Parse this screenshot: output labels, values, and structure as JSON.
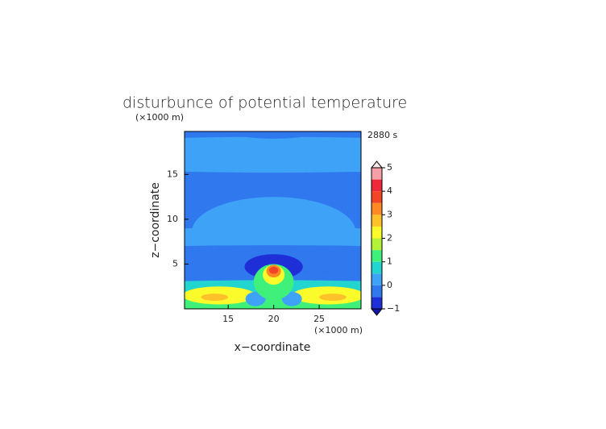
{
  "chart_data": {
    "type": "contour",
    "title": "disturbunce of potential temperature",
    "subtitle": "2880 s",
    "xlabel": "x−coordinate",
    "ylabel": "z−coordinate",
    "x_unit": "(×1000 m)",
    "y_unit": "(×1000 m)",
    "xlim": [
      10.2,
      29.6
    ],
    "ylim": [
      0,
      19.8
    ],
    "xticks": [
      15,
      20,
      25
    ],
    "yticks": [
      5,
      10,
      15
    ],
    "levels": [
      -1,
      -0.5,
      0,
      0.5,
      1,
      1.5,
      2,
      2.5,
      3,
      3.5,
      4,
      4.5,
      5
    ],
    "colors": [
      "#1f2fd8",
      "#2f78ee",
      "#3ea2f6",
      "#22d6cf",
      "#3ff07a",
      "#b4f23a",
      "#fbfb2c",
      "#ffc12a",
      "#ff8a24",
      "#f24526",
      "#ee2a3a",
      "#f4a0a6"
    ],
    "extend_colors": [
      "#1414b0",
      "#fde8e8"
    ],
    "cbar_lim": [
      -1,
      5
    ],
    "cbar_ticks": [
      {
        "value": -1,
        "label": "−1"
      },
      0,
      1,
      2,
      3,
      4,
      5
    ],
    "background_value": -0.25,
    "regions": [
      {
        "x": 20,
        "z": 17.2,
        "rx": 30,
        "rz": 2,
        "value": 0.25
      },
      {
        "x": 20,
        "z": 20.3,
        "rx": 6,
        "rz": 1.3,
        "value": -0.25
      },
      {
        "x": 20,
        "z": 8.6,
        "rx": 9,
        "rz": 3.9,
        "value": 0.25
      },
      {
        "x": 11,
        "z": 7.6,
        "rx": 3,
        "rz": 1.4,
        "value": 0.25
      },
      {
        "x": 29,
        "z": 7.6,
        "rx": 3,
        "rz": 1.4,
        "value": 0.25
      },
      {
        "x": 20,
        "z": 5.6,
        "rx": 30,
        "rz": 1.5,
        "value": -0.25
      },
      {
        "x": 20,
        "z": 1.2,
        "rx": 30,
        "rz": 2,
        "value": 0.75
      },
      {
        "x": 20,
        "z": 0.3,
        "rx": 30,
        "rz": 0.8,
        "value": 1.25
      },
      {
        "x": 14,
        "z": 1.5,
        "rx": 4,
        "rz": 1,
        "value": 2.25
      },
      {
        "x": 26,
        "z": 1.5,
        "rx": 4,
        "rz": 1,
        "value": 2.25
      },
      {
        "x": 13.5,
        "z": 1.3,
        "rx": 1.5,
        "rz": 0.4,
        "value": 2.75
      },
      {
        "x": 26.5,
        "z": 1.3,
        "rx": 1.5,
        "rz": 0.4,
        "value": 2.75
      },
      {
        "x": 18,
        "z": 1.1,
        "rx": 1.1,
        "rz": 0.8,
        "value": 0.25
      },
      {
        "x": 22,
        "z": 1.1,
        "rx": 1.1,
        "rz": 0.8,
        "value": 0.25
      },
      {
        "x": 20,
        "z": 4.7,
        "rx": 3.2,
        "rz": 1.4,
        "value": -0.75
      },
      {
        "x": 20,
        "z": 3,
        "rx": 2.2,
        "rz": 2,
        "value": 1.25
      },
      {
        "x": 20,
        "z": 3.8,
        "rx": 1.2,
        "rz": 1.1,
        "value": 2.25
      },
      {
        "x": 20,
        "z": 4.2,
        "rx": 0.8,
        "rz": 0.7,
        "value": 3.25
      },
      {
        "x": 20,
        "z": 4.3,
        "rx": 0.5,
        "rz": 0.4,
        "value": 3.75
      }
    ]
  }
}
